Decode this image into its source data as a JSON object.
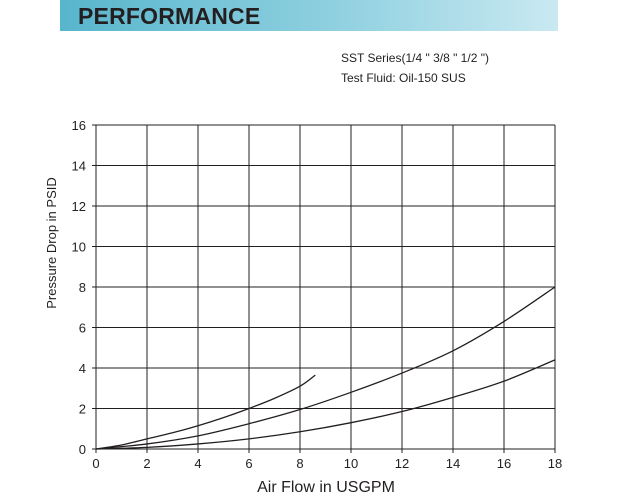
{
  "header": {
    "title": "PERFORMANCE"
  },
  "chart_data": {
    "type": "line",
    "title": "",
    "subtitle_lines": [
      "SST Series(1/4 \" 3/8 \" 1/2 \")",
      "Test Fluid: Oil-150 SUS"
    ],
    "xlabel": "Air Flow in USGPM",
    "ylabel": "Pressure Drop in PSID",
    "xlim": [
      0,
      18
    ],
    "ylim": [
      0,
      16
    ],
    "xticks": [
      0,
      2,
      4,
      6,
      8,
      10,
      12,
      14,
      16,
      18
    ],
    "yticks": [
      0,
      2,
      4,
      6,
      8,
      10,
      12,
      14,
      16
    ],
    "grid": true,
    "series": [
      {
        "x": [
          0,
          1,
          2,
          3,
          4,
          5,
          6,
          7,
          8,
          8.6
        ],
        "values": [
          0,
          0.2,
          0.5,
          0.8,
          1.15,
          1.55,
          2.0,
          2.5,
          3.1,
          3.65
        ]
      },
      {
        "x": [
          0,
          2,
          4,
          6,
          8,
          10,
          12,
          14,
          16,
          18
        ],
        "values": [
          0,
          0.25,
          0.65,
          1.25,
          1.95,
          2.8,
          3.75,
          4.85,
          6.3,
          8.0
        ]
      },
      {
        "x": [
          0,
          2,
          4,
          6,
          8,
          10,
          12,
          14,
          16,
          18
        ],
        "values": [
          0,
          0.08,
          0.25,
          0.5,
          0.85,
          1.3,
          1.85,
          2.55,
          3.35,
          4.4
        ]
      }
    ],
    "line_color": "#231f20"
  }
}
